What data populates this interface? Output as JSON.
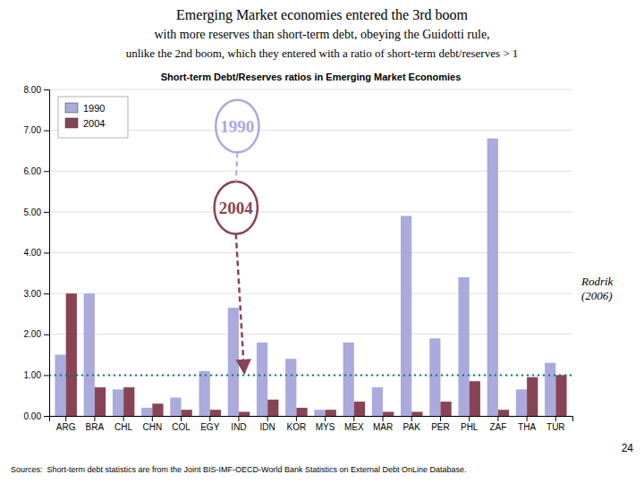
{
  "chart_data": {
    "type": "bar",
    "title": "Emerging Market economies entered the 3rd boom\nwith more reserves than short-term debt, obeying the Guidotti rule,\nunlike the 2nd boom, which they entered with a ratio of short-term debt/reserves > 1",
    "subtitle": "Short-term Debt/Reserves ratios in Emerging Market Economies",
    "categories": [
      "ARG",
      "BRA",
      "CHL",
      "CHN",
      "COL",
      "EGY",
      "IND",
      "IDN",
      "KOR",
      "MYS",
      "MEX",
      "MAR",
      "PAK",
      "PER",
      "PHL",
      "ZAF",
      "THA",
      "TUR"
    ],
    "series": [
      {
        "name": "1990",
        "color": "#aaaadd",
        "values": [
          1.5,
          3.0,
          0.65,
          0.2,
          0.45,
          1.1,
          2.65,
          1.8,
          1.4,
          0.15,
          1.8,
          0.7,
          4.9,
          1.9,
          3.4,
          6.8,
          0.65,
          1.3
        ]
      },
      {
        "name": "2004",
        "color": "#884455",
        "values": [
          3.0,
          0.7,
          0.7,
          0.3,
          0.15,
          0.15,
          0.1,
          0.4,
          0.2,
          0.15,
          0.35,
          0.1,
          0.1,
          0.35,
          0.85,
          0.15,
          0.95,
          1.0
        ]
      }
    ],
    "ylim": [
      0,
      8.0
    ],
    "yticks": [
      {
        "value": 0.0,
        "label": "0.00"
      },
      {
        "value": 1.0,
        "label": "1.00"
      },
      {
        "value": 2.0,
        "label": "2.00"
      },
      {
        "value": 3.0,
        "label": "3.00"
      },
      {
        "value": 4.0,
        "label": "4.00"
      },
      {
        "value": 5.0,
        "label": "5.00"
      },
      {
        "value": 6.0,
        "label": "6.00"
      },
      {
        "value": 7.0,
        "label": "7.00"
      },
      {
        "value": 8.0,
        "label": "8.00"
      }
    ],
    "grid": true,
    "legend": "upper left",
    "reference_line": {
      "value": 1.0,
      "color": "#007777"
    },
    "annotations": [
      "1990",
      "2004",
      "Rodrik\n(2006)",
      "24"
    ],
    "source": "Sources:  Short-term debt statistics are from the Joint BIS-IMF-OECD-World Bank Statistics on External Debt OnLine Database."
  }
}
